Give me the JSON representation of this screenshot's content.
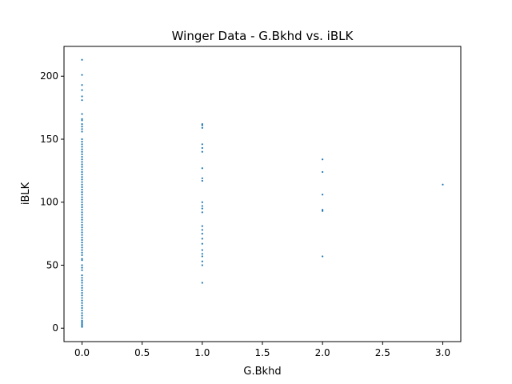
{
  "chart_data": {
    "type": "scatter",
    "title": "Winger Data - G.Bkhd vs. iBLK",
    "xlabel": "G.Bkhd",
    "ylabel": "iBLK",
    "color": "#1f77b4",
    "x": [
      0,
      0,
      0,
      0,
      0,
      0,
      0,
      0,
      0,
      0,
      0,
      0,
      0,
      0,
      0,
      0,
      0,
      0,
      0,
      0,
      0,
      0,
      0,
      0,
      0,
      0,
      0,
      0,
      0,
      0,
      0,
      0,
      0,
      0,
      0,
      0,
      0,
      0,
      0,
      0,
      0,
      0,
      0,
      0,
      0,
      0,
      0,
      0,
      0,
      0,
      0,
      0,
      0,
      0,
      0,
      0,
      0,
      0,
      0,
      0,
      0,
      0,
      0,
      0,
      0,
      0,
      0,
      0,
      0,
      0,
      0,
      0,
      0,
      0,
      0,
      0,
      0,
      0,
      0,
      0,
      0,
      0,
      0,
      0,
      0,
      0,
      0,
      0,
      0,
      1,
      1,
      1,
      1,
      1,
      1,
      1,
      1,
      1,
      1,
      1,
      1,
      1,
      1,
      1,
      1,
      1,
      1,
      1,
      1,
      1,
      1,
      1,
      1,
      2,
      2,
      2,
      2,
      2,
      2,
      3
    ],
    "values": [
      213,
      201,
      193,
      189,
      184,
      181,
      170,
      166,
      165,
      162,
      160,
      158,
      156,
      150,
      148,
      146,
      144,
      142,
      140,
      138,
      136,
      134,
      132,
      130,
      128,
      126,
      124,
      122,
      120,
      118,
      116,
      114,
      112,
      110,
      108,
      106,
      104,
      102,
      100,
      98,
      96,
      94,
      92,
      90,
      88,
      86,
      84,
      82,
      80,
      78,
      76,
      74,
      72,
      70,
      68,
      66,
      64,
      62,
      60,
      58,
      55,
      54,
      50,
      48,
      46,
      42,
      40,
      38,
      36,
      34,
      32,
      30,
      28,
      26,
      24,
      22,
      20,
      18,
      16,
      14,
      12,
      10,
      8,
      6,
      5,
      4,
      3,
      2,
      1,
      162,
      159,
      146,
      143,
      140,
      127,
      119,
      117,
      100,
      97,
      95,
      92,
      81,
      78,
      75,
      71,
      67,
      62,
      59,
      57,
      53,
      50,
      36,
      161,
      134,
      124,
      106,
      94,
      93,
      57,
      114
    ],
    "xlim": [
      -0.15,
      3.15
    ],
    "xticks": [
      {
        "value": 0,
        "label": "0.0"
      },
      {
        "value": 0.5,
        "label": "0.5"
      },
      {
        "value": 1,
        "label": "1.0"
      },
      {
        "value": 1.5,
        "label": "1.5"
      },
      {
        "value": 2,
        "label": "2.0"
      },
      {
        "value": 2.5,
        "label": "2.5"
      },
      {
        "value": 3,
        "label": "3.0"
      }
    ],
    "ylim": [
      -10.65,
      223.65
    ],
    "yticks": [
      0,
      50,
      100,
      150,
      200
    ]
  }
}
